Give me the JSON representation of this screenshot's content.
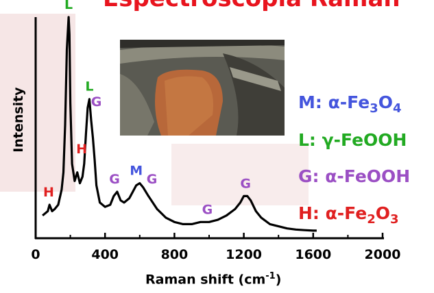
{
  "title": "Espectroscopia Raman",
  "chart_data": {
    "type": "line",
    "xlabel": "Raman shift (cm",
    "xlabel_superscript": "-1",
    "xlabel_suffix": ")",
    "ylabel": "Intensity",
    "xlim": [
      0,
      2000
    ],
    "xticks": [
      "0",
      "400",
      "800",
      "1200",
      "1600",
      "2000"
    ],
    "grid": false,
    "series": [
      {
        "x": [
          40,
          70,
          80,
          95,
          110,
          130,
          150,
          160,
          170,
          180,
          190,
          195,
          200,
          210,
          225,
          240,
          255,
          270,
          280,
          290,
          300,
          310,
          315,
          320,
          330,
          340,
          350,
          370,
          400,
          430,
          450,
          470,
          490,
          510,
          540,
          560,
          580,
          600,
          620,
          650,
          700,
          750,
          800,
          850,
          900,
          950,
          1000,
          1050,
          1100,
          1150,
          1180,
          1200,
          1220,
          1240,
          1270,
          1300,
          1350,
          1400,
          1450,
          1500,
          1550,
          1600,
          1620
        ],
        "y": [
          0.08,
          0.1,
          0.13,
          0.1,
          0.11,
          0.13,
          0.2,
          0.28,
          0.5,
          0.85,
          1.0,
          0.92,
          0.6,
          0.32,
          0.24,
          0.28,
          0.23,
          0.26,
          0.32,
          0.46,
          0.58,
          0.62,
          0.57,
          0.52,
          0.44,
          0.34,
          0.22,
          0.14,
          0.12,
          0.13,
          0.17,
          0.19,
          0.15,
          0.14,
          0.16,
          0.19,
          0.22,
          0.23,
          0.21,
          0.17,
          0.11,
          0.07,
          0.05,
          0.04,
          0.04,
          0.05,
          0.05,
          0.06,
          0.08,
          0.11,
          0.14,
          0.17,
          0.17,
          0.15,
          0.1,
          0.07,
          0.04,
          0.03,
          0.02,
          0.015,
          0.012,
          0.01,
          0.01
        ]
      }
    ],
    "peak_labels": [
      {
        "text": "L",
        "x": 190,
        "y": 1.0,
        "color": "#22aa22"
      },
      {
        "text": "L",
        "x": 310,
        "y": 0.62,
        "color": "#22aa22"
      },
      {
        "text": "G",
        "x": 350,
        "y": 0.55,
        "color": "#9b4fc4"
      },
      {
        "text": "H",
        "x": 75,
        "y": 0.13,
        "color": "#e02020"
      },
      {
        "text": "H",
        "x": 265,
        "y": 0.33,
        "color": "#e02020"
      },
      {
        "text": "G",
        "x": 455,
        "y": 0.19,
        "color": "#9b4fc4"
      },
      {
        "text": "M",
        "x": 580,
        "y": 0.23,
        "color": "#4455dd"
      },
      {
        "text": "G",
        "x": 670,
        "y": 0.19,
        "color": "#9b4fc4"
      },
      {
        "text": "G",
        "x": 990,
        "y": 0.05,
        "color": "#9b4fc4"
      },
      {
        "text": "G",
        "x": 1210,
        "y": 0.17,
        "color": "#9b4fc4"
      }
    ]
  },
  "legend": [
    {
      "prefix": "M: α-Fe",
      "sub1": "3",
      "mid": "O",
      "sub2": "4",
      "color": "#4455dd"
    },
    {
      "prefix": "L: γ-FeOOH",
      "sub1": "",
      "mid": "",
      "sub2": "",
      "color": "#22aa22"
    },
    {
      "prefix": "G: α-FeOOH",
      "sub1": "",
      "mid": "",
      "sub2": "",
      "color": "#9b4fc4"
    },
    {
      "prefix": "H: α-Fe",
      "sub1": "2",
      "mid": "O",
      "sub2": "3",
      "color": "#e02020"
    }
  ],
  "colors": {
    "title": "#e8141e",
    "axis": "#000000",
    "line": "#000000"
  }
}
